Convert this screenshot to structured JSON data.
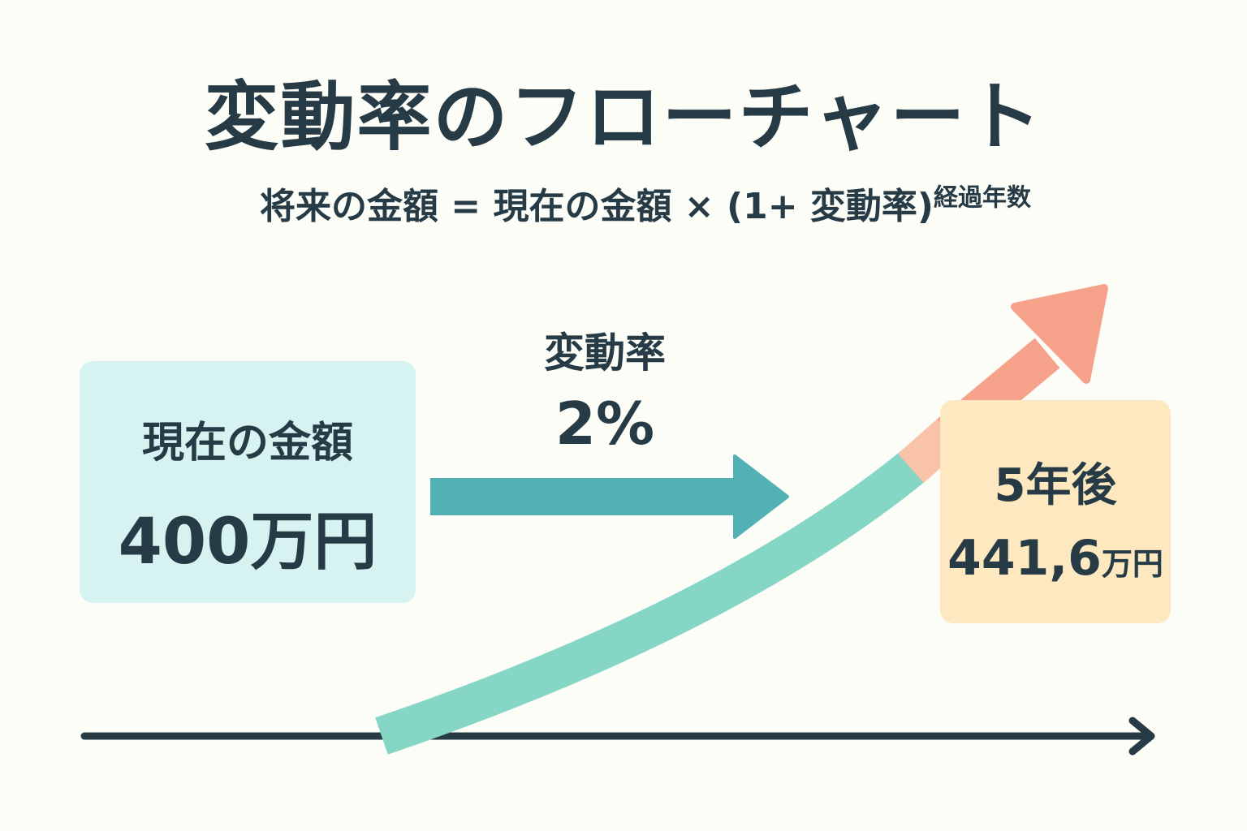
{
  "title": "変動率のフローチャート",
  "formula": {
    "text": "将来の金額 = 現在の金額 × (1+ 変動率)",
    "exponent": "経過年数"
  },
  "present": {
    "label": "現在の金額",
    "value": "400万円"
  },
  "rate": {
    "label": "変動率",
    "value": "2%"
  },
  "future": {
    "label": "5年後",
    "value_number": "441,6",
    "value_unit": "万円"
  },
  "colors": {
    "text": "#263b45",
    "present_box": "#d6f3f1",
    "future_box": "#fde8bf",
    "flow_arrow": "#52b1b4",
    "growth_curve": "#85d6c5",
    "growth_arrow": "#f6a28a",
    "axis": "#263b45"
  }
}
